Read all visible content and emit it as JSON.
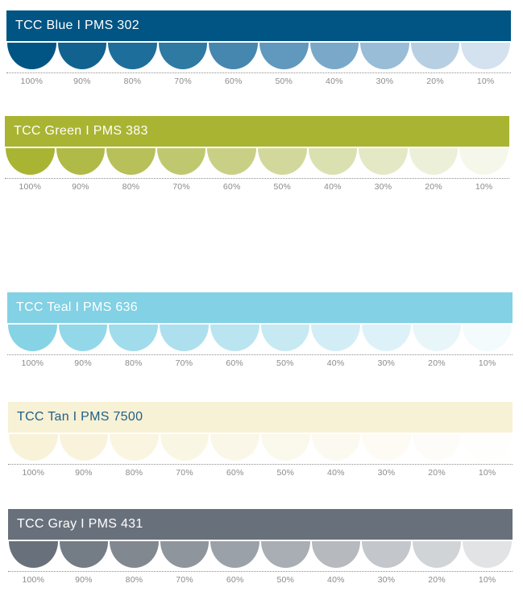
{
  "palettes": [
    {
      "title": "TCC Blue I PMS 302",
      "bar_color": "#005584",
      "text_color": "#ffffff",
      "swatches": [
        "#005584",
        "#11628f",
        "#1d6e9a",
        "#2e7aa3",
        "#4687b0",
        "#6198bd",
        "#7aa8c8",
        "#99bcd7",
        "#b7cfe3",
        "#d3e2ee"
      ],
      "percentages": [
        "100%",
        "90%",
        "80%",
        "70%",
        "60%",
        "50%",
        "40%",
        "30%",
        "20%",
        "10%"
      ]
    },
    {
      "title": "TCC Green I PMS 383",
      "bar_color": "#a9b432",
      "text_color": "#ffffff",
      "swatches": [
        "#a9b432",
        "#b0ba46",
        "#b7c059",
        "#c0c86f",
        "#c9cf85",
        "#d2d89b",
        "#dbe0b0",
        "#e4e8c5",
        "#edf0d8",
        "#f5f7ea"
      ],
      "percentages": [
        "100%",
        "90%",
        "80%",
        "70%",
        "60%",
        "50%",
        "40%",
        "30%",
        "20%",
        "10%"
      ]
    },
    {
      "title": "TCC Teal I PMS 636",
      "bar_color": "#82d1e4",
      "text_color": "#ffffff",
      "swatches": [
        "#86d3e5",
        "#93d8e8",
        "#a0dceb",
        "#addfee",
        "#bae4f0",
        "#c6e9f2",
        "#d2edf5",
        "#ddf2f8",
        "#e8f6fa",
        "#f3fbfd"
      ],
      "percentages": [
        "100%",
        "90%",
        "80%",
        "70%",
        "60%",
        "50%",
        "40%",
        "30%",
        "20%",
        "10%"
      ]
    },
    {
      "title": "TCC Tan I PMS 7500",
      "bar_color": "#f7f1d5",
      "text_color": "#1f5f86",
      "swatches": [
        "#f8f2d8",
        "#f9f3dc",
        "#f9f5e0",
        "#faf6e4",
        "#fbf7e8",
        "#fbf8ec",
        "#fcf9f0",
        "#fdfbf4",
        "#fdfcf8",
        "#fefefc"
      ],
      "percentages": [
        "100%",
        "90%",
        "80%",
        "70%",
        "60%",
        "50%",
        "40%",
        "30%",
        "20%",
        "10%"
      ]
    },
    {
      "title": "TCC Gray I PMS 431",
      "bar_color": "#68717b",
      "text_color": "#ffffff",
      "swatches": [
        "#68717b",
        "#747c86",
        "#818890",
        "#8e959c",
        "#9ba1a8",
        "#a8aeb4",
        "#b6babf",
        "#c3c7cb",
        "#d1d4d7",
        "#e1e3e5"
      ],
      "percentages": [
        "100%",
        "90%",
        "80%",
        "70%",
        "60%",
        "50%",
        "40%",
        "30%",
        "20%",
        "10%"
      ]
    }
  ]
}
